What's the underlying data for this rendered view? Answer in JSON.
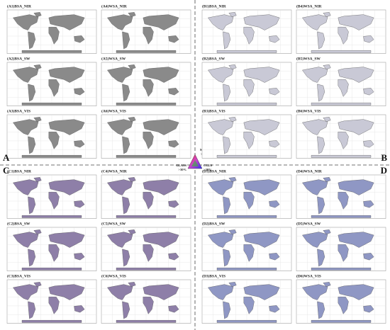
{
  "quadrants": [
    {
      "letter": "A",
      "panels": [
        "(A1)BSA_NIR",
        "(A4)WSA_NIR",
        "(A2)BSA_SW",
        "(A5)WSA_SW",
        "(A3)BSA_VIS",
        "(A6)WSA_VIS"
      ]
    },
    {
      "letter": "B",
      "panels": [
        "(B1)BSA_NIR",
        "(B4)WSA_NIR",
        "(B2)BSA_SW",
        "(B5)WSA_SW",
        "(B3)BSA_VIS",
        "(B6)WSA_VIS"
      ]
    },
    {
      "letter": "C",
      "panels": [
        "(C1)BSA_NIR",
        "(C4)WSA_NIR",
        "(C2)BSA_SW",
        "(C5)WSA_SW",
        "(C3)BSA_VIS",
        "(C6)WSA_VIS"
      ]
    },
    {
      "letter": "D",
      "panels": [
        "(D1)BSA_NIR",
        "(D4)WSA_NIR",
        "(D2)BSA_SW",
        "(D5)WSA_SW",
        "(D3)BSA_VIS",
        "(D6)WSA_VIS"
      ]
    }
  ],
  "legend": {
    "top": "MODIS",
    "top_value": ">30%",
    "left": "GLASS",
    "left_value": ">30%",
    "right": "CGLS",
    "right_value": ">30%"
  }
}
